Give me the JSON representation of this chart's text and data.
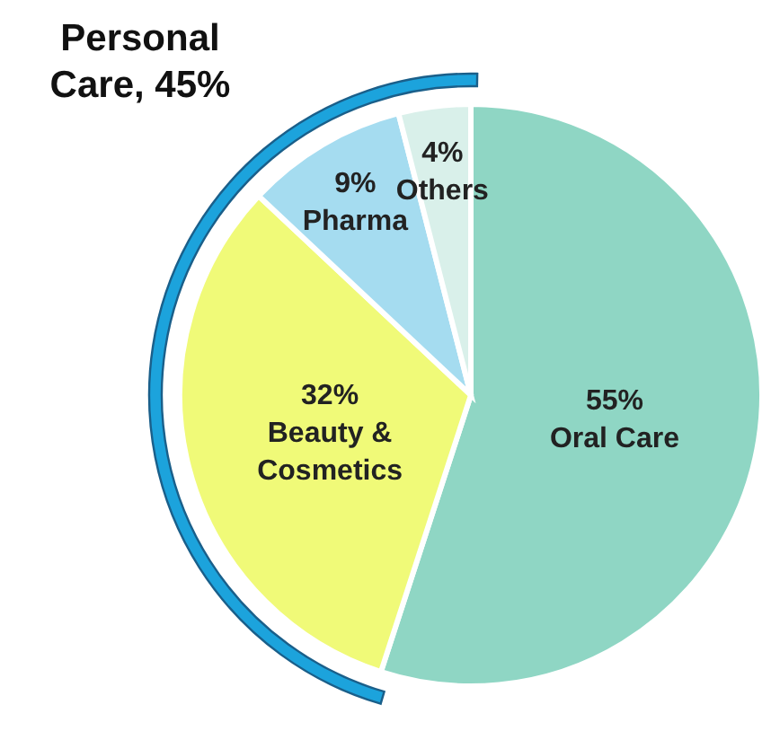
{
  "chart_data": {
    "type": "pie",
    "categories": [
      "Oral Care",
      "Beauty & Cosmetics",
      "Pharma",
      "Others"
    ],
    "values": [
      55,
      32,
      9,
      4
    ],
    "value_labels": [
      "55%",
      "32%",
      "9%",
      "4%"
    ],
    "colors": [
      "#8fd6c4",
      "#f0fa78",
      "#a5dcf0",
      "#d9f0ea"
    ],
    "annotations": [
      "Personal Care, 45%"
    ]
  }
}
